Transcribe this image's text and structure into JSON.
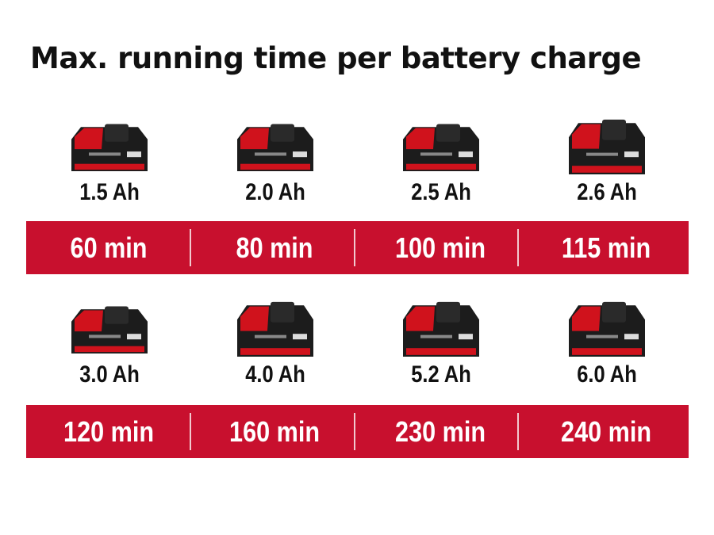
{
  "title": "Max. running time per battery charge",
  "colors": {
    "accent": "#c8102e",
    "battery_body": "#1c1c1c",
    "battery_red": "#d0121c"
  },
  "rows": [
    {
      "items": [
        {
          "capacity": "1.5 Ah",
          "runtime": "60 min",
          "icon": "battery-pack-small"
        },
        {
          "capacity": "2.0 Ah",
          "runtime": "80 min",
          "icon": "battery-pack-small"
        },
        {
          "capacity": "2.5 Ah",
          "runtime": "100 min",
          "icon": "battery-pack-small"
        },
        {
          "capacity": "2.6 Ah",
          "runtime": "115 min",
          "icon": "battery-pack-plus"
        }
      ]
    },
    {
      "items": [
        {
          "capacity": "3.0 Ah",
          "runtime": "120 min",
          "icon": "battery-pack-small"
        },
        {
          "capacity": "4.0 Ah",
          "runtime": "160 min",
          "icon": "battery-pack-large"
        },
        {
          "capacity": "5.2 Ah",
          "runtime": "230 min",
          "icon": "battery-pack-plus"
        },
        {
          "capacity": "6.0 Ah",
          "runtime": "240 min",
          "icon": "battery-pack-large"
        }
      ]
    }
  ]
}
